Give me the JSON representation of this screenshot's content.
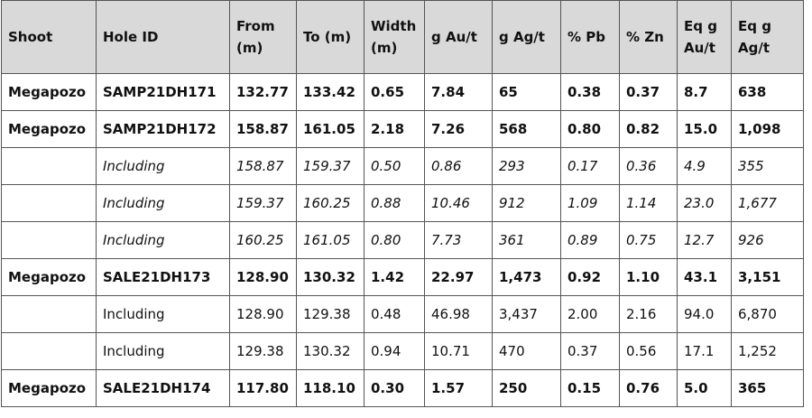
{
  "table": {
    "headers": [
      "Shoot",
      "Hole ID",
      "From (m)",
      "To (m)",
      "Width (m)",
      "g Au/t",
      "g Ag/t",
      "% Pb",
      "% Zn",
      "Eq g Au/t",
      "Eq g Ag/t"
    ],
    "rows": [
      {
        "style": "main",
        "cells": [
          "Megapozo",
          "SAMP21DH171",
          "132.77",
          "133.42",
          "0.65",
          "7.84",
          "65",
          "0.38",
          "0.37",
          "8.7",
          "638"
        ]
      },
      {
        "style": "main",
        "cells": [
          "Megapozo",
          "SAMP21DH172",
          "158.87",
          "161.05",
          "2.18",
          "7.26",
          "568",
          "0.80",
          "0.82",
          "15.0",
          "1,098"
        ]
      },
      {
        "style": "sub-italic",
        "cells": [
          "",
          "Including",
          "158.87",
          "159.37",
          "0.50",
          "0.86",
          "293",
          "0.17",
          "0.36",
          "4.9",
          "355"
        ]
      },
      {
        "style": "sub-italic",
        "cells": [
          "",
          "Including",
          "159.37",
          "160.25",
          "0.88",
          "10.46",
          "912",
          "1.09",
          "1.14",
          "23.0",
          "1,677"
        ]
      },
      {
        "style": "sub-italic",
        "cells": [
          "",
          "Including",
          "160.25",
          "161.05",
          "0.80",
          "7.73",
          "361",
          "0.89",
          "0.75",
          "12.7",
          "926"
        ]
      },
      {
        "style": "main",
        "cells": [
          "Megapozo",
          "SALE21DH173",
          "128.90",
          "130.32",
          "1.42",
          "22.97",
          "1,473",
          "0.92",
          "1.10",
          "43.1",
          "3,151"
        ]
      },
      {
        "style": "sub-normal",
        "cells": [
          "",
          "Including",
          "128.90",
          "129.38",
          "0.48",
          "46.98",
          "3,437",
          "2.00",
          "2.16",
          "94.0",
          "6,870"
        ]
      },
      {
        "style": "sub-normal",
        "cells": [
          "",
          "Including",
          "129.38",
          "130.32",
          "0.94",
          "10.71",
          "470",
          "0.37",
          "0.56",
          "17.1",
          "1,252"
        ]
      },
      {
        "style": "main",
        "cells": [
          "Megapozo",
          "SALE21DH174",
          "117.80",
          "118.10",
          "0.30",
          "1.57",
          "250",
          "0.15",
          "0.76",
          "5.0",
          "365"
        ]
      }
    ]
  }
}
